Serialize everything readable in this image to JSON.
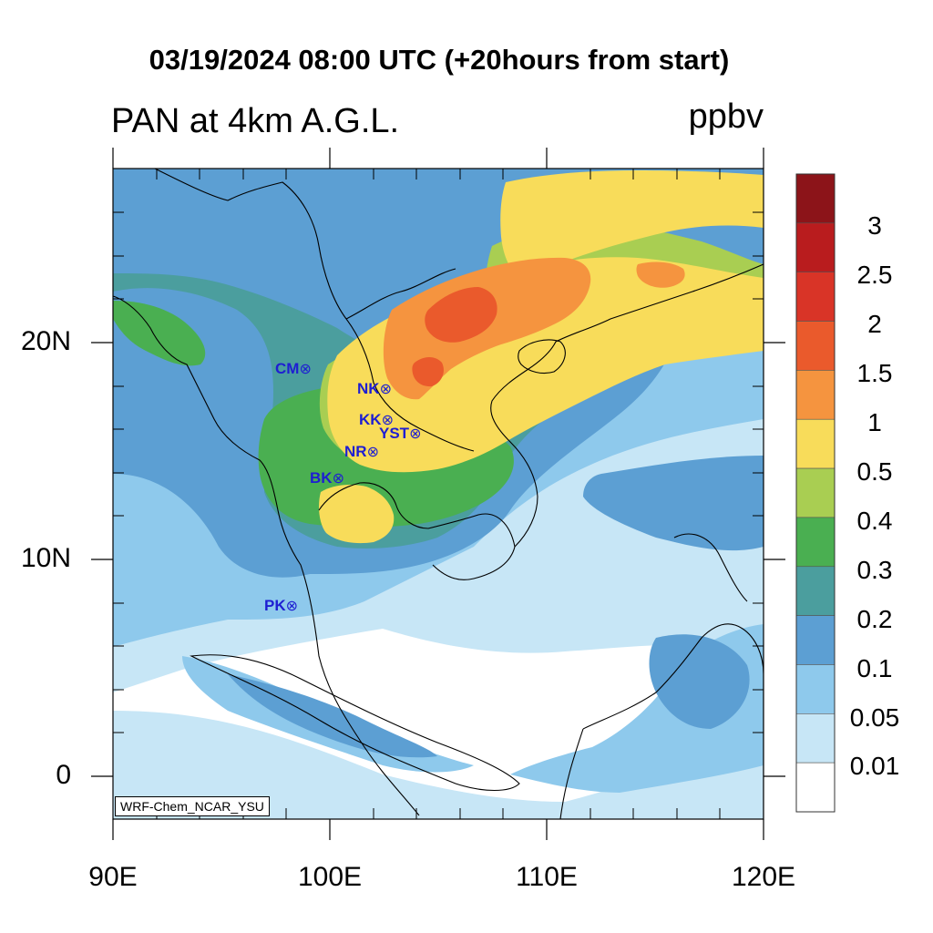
{
  "title": "03/19/2024 08:00 UTC (+20hours from start)",
  "subtitle_left": "PAN at 4km A.G.L.",
  "units": "ppbv",
  "credit": "WRF-Chem_NCAR_YSU",
  "axes": {
    "lat_ticks": [
      "20N",
      "10N",
      "0"
    ],
    "lon_ticks": [
      "90E",
      "100E",
      "110E",
      "120E"
    ],
    "lat_range": [
      -2,
      28
    ],
    "lon_range": [
      90,
      120
    ]
  },
  "colorbar": {
    "labels": [
      "3",
      "2.5",
      "2",
      "1.5",
      "1",
      "0.5",
      "0.4",
      "0.3",
      "0.2",
      "0.1",
      "0.05",
      "0.01"
    ],
    "colors": [
      "#8c1419",
      "#b91c1e",
      "#d93427",
      "#ea5a2c",
      "#f5943f",
      "#f8dc5a",
      "#a9ce52",
      "#4aaf51",
      "#4b9e9e",
      "#5c9fd3",
      "#8ec9ec",
      "#c7e6f6",
      "#ffffff"
    ]
  },
  "stations": [
    {
      "name": "CM",
      "symbol": "⊗"
    },
    {
      "name": "NK",
      "symbol": "⊗"
    },
    {
      "name": "KK",
      "symbol": "⊗"
    },
    {
      "name": "YST",
      "symbol": "⊗"
    },
    {
      "name": "NR",
      "symbol": "⊗"
    },
    {
      "name": "BK",
      "symbol": "⊗"
    },
    {
      "name": "PK",
      "symbol": "⊗"
    }
  ]
}
